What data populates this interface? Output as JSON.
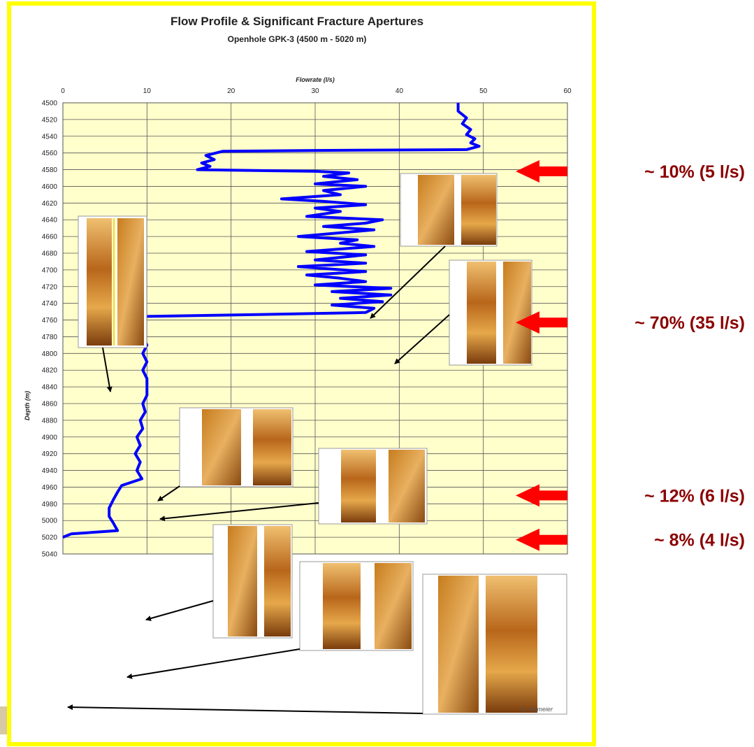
{
  "chart_data": {
    "type": "line",
    "title": "Flow Profile & Significant Fracture Apertures",
    "subtitle": "Openhole GPK-3 (4500 m - 5020 m)",
    "xlabel": "Flowrate (l/s)",
    "ylabel": "Depth (m)",
    "xlim": [
      0,
      60
    ],
    "ylim": [
      4500,
      5040
    ],
    "y_inverted": true,
    "grid": true,
    "x_ticks": [
      "0",
      "10",
      "20",
      "30",
      "40",
      "50",
      "60"
    ],
    "y_ticks": [
      "4500",
      "4520",
      "4540",
      "4560",
      "4580",
      "4600",
      "4620",
      "4640",
      "4660",
      "4680",
      "4700",
      "4720",
      "4740",
      "4760",
      "4780",
      "4800",
      "4820",
      "4840",
      "4860",
      "4880",
      "4900",
      "4920",
      "4940",
      "4960",
      "4980",
      "5000",
      "5020",
      "5040"
    ],
    "series": [
      {
        "color": "#0000ff",
        "points": [
          [
            47,
            4500
          ],
          [
            47,
            4510
          ],
          [
            48,
            4518
          ],
          [
            47.5,
            4525
          ],
          [
            48.5,
            4532
          ],
          [
            48,
            4538
          ],
          [
            49,
            4543
          ],
          [
            48.5,
            4548
          ],
          [
            49.5,
            4552
          ],
          [
            48,
            4556
          ],
          [
            30,
            4557
          ],
          [
            19,
            4558
          ],
          [
            17,
            4563
          ],
          [
            18,
            4568
          ],
          [
            16.5,
            4572
          ],
          [
            17.5,
            4576
          ],
          [
            16,
            4580
          ],
          [
            30,
            4582
          ],
          [
            34,
            4584
          ],
          [
            31,
            4588
          ],
          [
            35,
            4592
          ],
          [
            30,
            4597
          ],
          [
            36,
            4600
          ],
          [
            31,
            4605
          ],
          [
            33,
            4610
          ],
          [
            26,
            4615
          ],
          [
            31,
            4618
          ],
          [
            36,
            4622
          ],
          [
            30,
            4626
          ],
          [
            33,
            4630
          ],
          [
            29,
            4636
          ],
          [
            38,
            4640
          ],
          [
            36,
            4644
          ],
          [
            31,
            4648
          ],
          [
            37,
            4652
          ],
          [
            28,
            4660
          ],
          [
            35,
            4664
          ],
          [
            33,
            4668
          ],
          [
            37,
            4672
          ],
          [
            29,
            4678
          ],
          [
            36,
            4682
          ],
          [
            30,
            4688
          ],
          [
            36,
            4692
          ],
          [
            28,
            4696
          ],
          [
            36,
            4702
          ],
          [
            29,
            4706
          ],
          [
            33,
            4710
          ],
          [
            36,
            4714
          ],
          [
            30,
            4718
          ],
          [
            39,
            4722
          ],
          [
            32,
            4726
          ],
          [
            39,
            4730
          ],
          [
            33,
            4734
          ],
          [
            38,
            4738
          ],
          [
            32,
            4742
          ],
          [
            37,
            4746
          ],
          [
            36,
            4751
          ],
          [
            20,
            4754
          ],
          [
            8,
            4756
          ],
          [
            5,
            4758
          ],
          [
            4.5,
            4760
          ],
          [
            6,
            4762
          ],
          [
            9,
            4766
          ],
          [
            9.5,
            4772
          ],
          [
            9.5,
            4780
          ],
          [
            10,
            4790
          ],
          [
            9.5,
            4800
          ],
          [
            10,
            4810
          ],
          [
            9.5,
            4820
          ],
          [
            10,
            4830
          ],
          [
            10,
            4840
          ],
          [
            10,
            4850
          ],
          [
            9.5,
            4860
          ],
          [
            9.8,
            4870
          ],
          [
            9.2,
            4880
          ],
          [
            9.5,
            4890
          ],
          [
            8.8,
            4900
          ],
          [
            9.2,
            4910
          ],
          [
            8.6,
            4920
          ],
          [
            9.2,
            4930
          ],
          [
            8.8,
            4940
          ],
          [
            9.4,
            4950
          ],
          [
            7,
            4958
          ],
          [
            6.5,
            4966
          ],
          [
            6,
            4975
          ],
          [
            5.5,
            4985
          ],
          [
            5.5,
            4995
          ],
          [
            6,
            5003
          ],
          [
            6.5,
            5012
          ],
          [
            1,
            5016
          ],
          [
            0,
            5020
          ]
        ]
      }
    ],
    "annotations": [
      {
        "text": "~ 10% (5 l/s)",
        "depth": 4582
      },
      {
        "text": "~ 70% (35 l/s)",
        "depth": 4763
      },
      {
        "text": "~ 12% (6 l/s)",
        "depth": 4970
      },
      {
        "text": "~ 8% (4 l/s)",
        "depth": 5023
      }
    ],
    "credit": "G. Homeier"
  }
}
